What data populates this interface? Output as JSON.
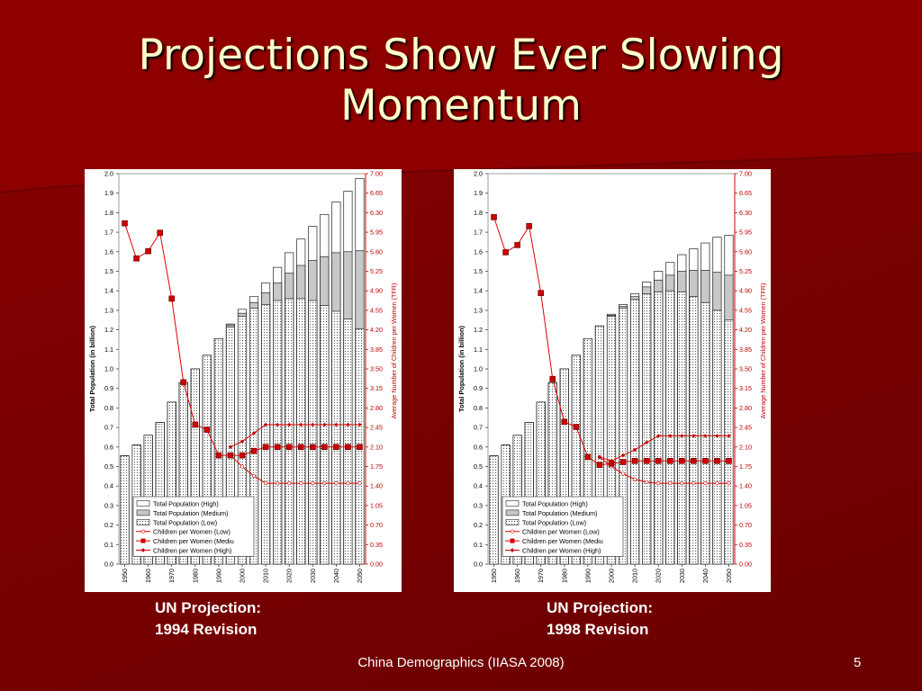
{
  "slide": {
    "title_line1": "Projections Show Ever Slowing",
    "title_line2": "Momentum",
    "footer": "China Demographics (IIASA 2008)",
    "page_number": "5",
    "captions": [
      {
        "line1": "UN Projection:",
        "line2": "1994 Revision"
      },
      {
        "line1": "UN Projection:",
        "line2": "1998 Revision"
      }
    ]
  },
  "chart_data": [
    {
      "type": "bar",
      "ylabel": "Total Population (in billion)",
      "y2label": "Average Number of Children per Women (TFR)",
      "ylim": [
        0,
        2.0
      ],
      "y_ticks": [
        "0.0",
        "0.1",
        "0.2",
        "0.3",
        "0.4",
        "0.5",
        "0.6",
        "0.7",
        "0.8",
        "0.9",
        "1.0",
        "1.1",
        "1.2",
        "1.3",
        "1.4",
        "1.5",
        "1.6",
        "1.7",
        "1.8",
        "1.9",
        "2.0"
      ],
      "y2lim": [
        0,
        7.0
      ],
      "y2_ticks": [
        "0.00",
        "0.35",
        "0.70",
        "1.05",
        "1.40",
        "1.75",
        "2.10",
        "2.45",
        "2.80",
        "3.15",
        "3.50",
        "3.85",
        "4.20",
        "4.55",
        "4.90",
        "5.25",
        "5.60",
        "5.95",
        "6.30",
        "6.65",
        "7.00"
      ],
      "categories": [
        "1950",
        "1955",
        "1960",
        "1965",
        "1970",
        "1975",
        "1980",
        "1985",
        "1990",
        "1995",
        "2000",
        "2005",
        "2010",
        "2015",
        "2020",
        "2025",
        "2030",
        "2035",
        "2040",
        "2045",
        "2050"
      ],
      "x_tick_labels": [
        "1950",
        "1960",
        "1970",
        "1980",
        "1990",
        "2000",
        "2010",
        "2020",
        "2030",
        "2040",
        "2050"
      ],
      "legend_position": "bottom-left",
      "legend": [
        "Total Population (High)",
        "Total Population (Medium)",
        "Total Population (Low)",
        "Children per Women (Low)",
        "Children per Women (Mediu",
        "Children per Women (High)"
      ],
      "series": [
        {
          "name": "Total Population (High)",
          "values": [
            0.555,
            0.61,
            0.66,
            0.725,
            0.83,
            0.93,
            1.0,
            1.07,
            1.155,
            1.23,
            1.305,
            1.37,
            1.44,
            1.52,
            1.595,
            1.665,
            1.73,
            1.79,
            1.855,
            1.91,
            1.975
          ]
        },
        {
          "name": "Total Population (Medium)",
          "values": [
            0.555,
            0.61,
            0.66,
            0.725,
            0.83,
            0.93,
            1.0,
            1.07,
            1.155,
            1.225,
            1.285,
            1.34,
            1.39,
            1.44,
            1.49,
            1.53,
            1.555,
            1.575,
            1.595,
            1.6,
            1.605
          ]
        },
        {
          "name": "Total Population (Low)",
          "values": [
            0.555,
            0.61,
            0.66,
            0.725,
            0.83,
            0.93,
            1.0,
            1.07,
            1.155,
            1.215,
            1.27,
            1.31,
            1.33,
            1.35,
            1.36,
            1.36,
            1.35,
            1.325,
            1.295,
            1.255,
            1.205
          ]
        },
        {
          "name": "Children per Women (Low)",
          "x": [
            "1950",
            "1955",
            "1960",
            "1965",
            "1970",
            "1975",
            "1980",
            "1985",
            "1990",
            "1995",
            "2000",
            "2005",
            "2010",
            "2015",
            "2020",
            "2025",
            "2030",
            "2035",
            "2040",
            "2045",
            "2050"
          ],
          "values": [
            null,
            null,
            null,
            null,
            null,
            null,
            null,
            null,
            null,
            1.95,
            1.75,
            1.58,
            1.45,
            1.45,
            1.45,
            1.45,
            1.45,
            1.45,
            1.45,
            1.45,
            1.45
          ]
        },
        {
          "name": "Children per Women (Mediu",
          "x": [
            "1950",
            "1955",
            "1960",
            "1965",
            "1970",
            "1975",
            "1980",
            "1985",
            "1990",
            "1995",
            "2000",
            "2005",
            "2010",
            "2015",
            "2020",
            "2025",
            "2030",
            "2035",
            "2040",
            "2045",
            "2050"
          ],
          "values": [
            6.11,
            5.48,
            5.61,
            5.94,
            4.76,
            3.26,
            2.5,
            2.41,
            1.95,
            1.95,
            1.95,
            2.03,
            2.1,
            2.1,
            2.1,
            2.1,
            2.1,
            2.1,
            2.1,
            2.1,
            2.1
          ]
        },
        {
          "name": "Children per Women (High)",
          "x": [
            "1950",
            "1955",
            "1960",
            "1965",
            "1970",
            "1975",
            "1980",
            "1985",
            "1990",
            "1995",
            "2000",
            "2005",
            "2010",
            "2015",
            "2020",
            "2025",
            "2030",
            "2035",
            "2040",
            "2045",
            "2050"
          ],
          "values": [
            null,
            null,
            null,
            null,
            null,
            null,
            null,
            null,
            null,
            2.1,
            2.2,
            2.35,
            2.5,
            2.5,
            2.5,
            2.5,
            2.5,
            2.5,
            2.5,
            2.5,
            2.5
          ]
        }
      ]
    },
    {
      "type": "bar",
      "ylabel": "Total Population (in billion)",
      "y2label": "Average Number of Children per Women (TFR)",
      "ylim": [
        0,
        2.0
      ],
      "y_ticks": [
        "0.0",
        "0.1",
        "0.2",
        "0.3",
        "0.4",
        "0.5",
        "0.6",
        "0.7",
        "0.8",
        "0.9",
        "1.0",
        "1.1",
        "1.2",
        "1.3",
        "1.4",
        "1.5",
        "1.6",
        "1.7",
        "1.8",
        "1.9",
        "2.0"
      ],
      "y2lim": [
        0,
        7.0
      ],
      "y2_ticks": [
        "0.00",
        "0.35",
        "0.70",
        "1.05",
        "1.40",
        "1.75",
        "2.10",
        "2.45",
        "2.80",
        "3.15",
        "3.50",
        "3.85",
        "4.20",
        "4.55",
        "4.90",
        "5.25",
        "5.60",
        "5.95",
        "6.30",
        "6.65",
        "7.00"
      ],
      "categories": [
        "1950",
        "1955",
        "1960",
        "1965",
        "1970",
        "1975",
        "1980",
        "1985",
        "1990",
        "1995",
        "2000",
        "2005",
        "2010",
        "2015",
        "2020",
        "2025",
        "2030",
        "2035",
        "2040",
        "2045",
        "2050"
      ],
      "x_tick_labels": [
        "1950",
        "1960",
        "1970",
        "1980",
        "1990",
        "2000",
        "2010",
        "2020",
        "2030",
        "2040",
        "2050"
      ],
      "legend_position": "bottom-left",
      "legend": [
        "Total Population (High)",
        "Total Population (Medium)",
        "Total Population (Low)",
        "Children per Women (Low)",
        "Children per Women (Mediu",
        "Children per Women (High)"
      ],
      "series": [
        {
          "name": "Total Population (High)",
          "values": [
            0.555,
            0.61,
            0.66,
            0.725,
            0.83,
            0.93,
            1.0,
            1.07,
            1.155,
            1.22,
            1.28,
            1.33,
            1.385,
            1.445,
            1.5,
            1.545,
            1.585,
            1.615,
            1.645,
            1.675,
            1.685
          ]
        },
        {
          "name": "Total Population (Medium)",
          "values": [
            0.555,
            0.61,
            0.66,
            0.725,
            0.83,
            0.93,
            1.0,
            1.07,
            1.155,
            1.22,
            1.275,
            1.32,
            1.37,
            1.42,
            1.455,
            1.48,
            1.5,
            1.505,
            1.505,
            1.495,
            1.48
          ]
        },
        {
          "name": "Total Population (Low)",
          "values": [
            0.555,
            0.61,
            0.66,
            0.725,
            0.83,
            0.93,
            1.0,
            1.07,
            1.155,
            1.22,
            1.27,
            1.31,
            1.355,
            1.385,
            1.395,
            1.4,
            1.395,
            1.37,
            1.34,
            1.3,
            1.25
          ]
        },
        {
          "name": "Children per Women (Low)",
          "x": [
            "1950",
            "1955",
            "1960",
            "1965",
            "1970",
            "1975",
            "1980",
            "1985",
            "1990",
            "1995",
            "2000",
            "2005",
            "2010",
            "2015",
            "2020",
            "2025",
            "2030",
            "2035",
            "2040",
            "2045",
            "2050"
          ],
          "values": [
            null,
            null,
            null,
            null,
            null,
            null,
            null,
            null,
            null,
            1.92,
            1.75,
            1.62,
            1.52,
            1.47,
            1.45,
            1.45,
            1.45,
            1.45,
            1.45,
            1.45,
            1.45
          ]
        },
        {
          "name": "Children per Women (Mediu",
          "x": [
            "1950",
            "1955",
            "1960",
            "1965",
            "1970",
            "1975",
            "1980",
            "1985",
            "1990",
            "1995",
            "2000",
            "2005",
            "2010",
            "2015",
            "2020",
            "2025",
            "2030",
            "2035",
            "2040",
            "2045",
            "2050"
          ],
          "values": [
            6.22,
            5.59,
            5.72,
            6.06,
            4.86,
            3.32,
            2.55,
            2.46,
            1.92,
            1.78,
            1.8,
            1.83,
            1.85,
            1.85,
            1.85,
            1.85,
            1.85,
            1.85,
            1.85,
            1.85,
            1.85
          ]
        },
        {
          "name": "Children per Women (High)",
          "x": [
            "1950",
            "1955",
            "1960",
            "1965",
            "1970",
            "1975",
            "1980",
            "1985",
            "1990",
            "1995",
            "2000",
            "2005",
            "2010",
            "2015",
            "2020",
            "2025",
            "2030",
            "2035",
            "2040",
            "2045",
            "2050"
          ],
          "values": [
            null,
            null,
            null,
            null,
            null,
            null,
            null,
            null,
            null,
            1.92,
            1.85,
            1.95,
            2.05,
            2.18,
            2.3,
            2.3,
            2.3,
            2.3,
            2.3,
            2.3,
            2.3
          ]
        }
      ]
    }
  ]
}
